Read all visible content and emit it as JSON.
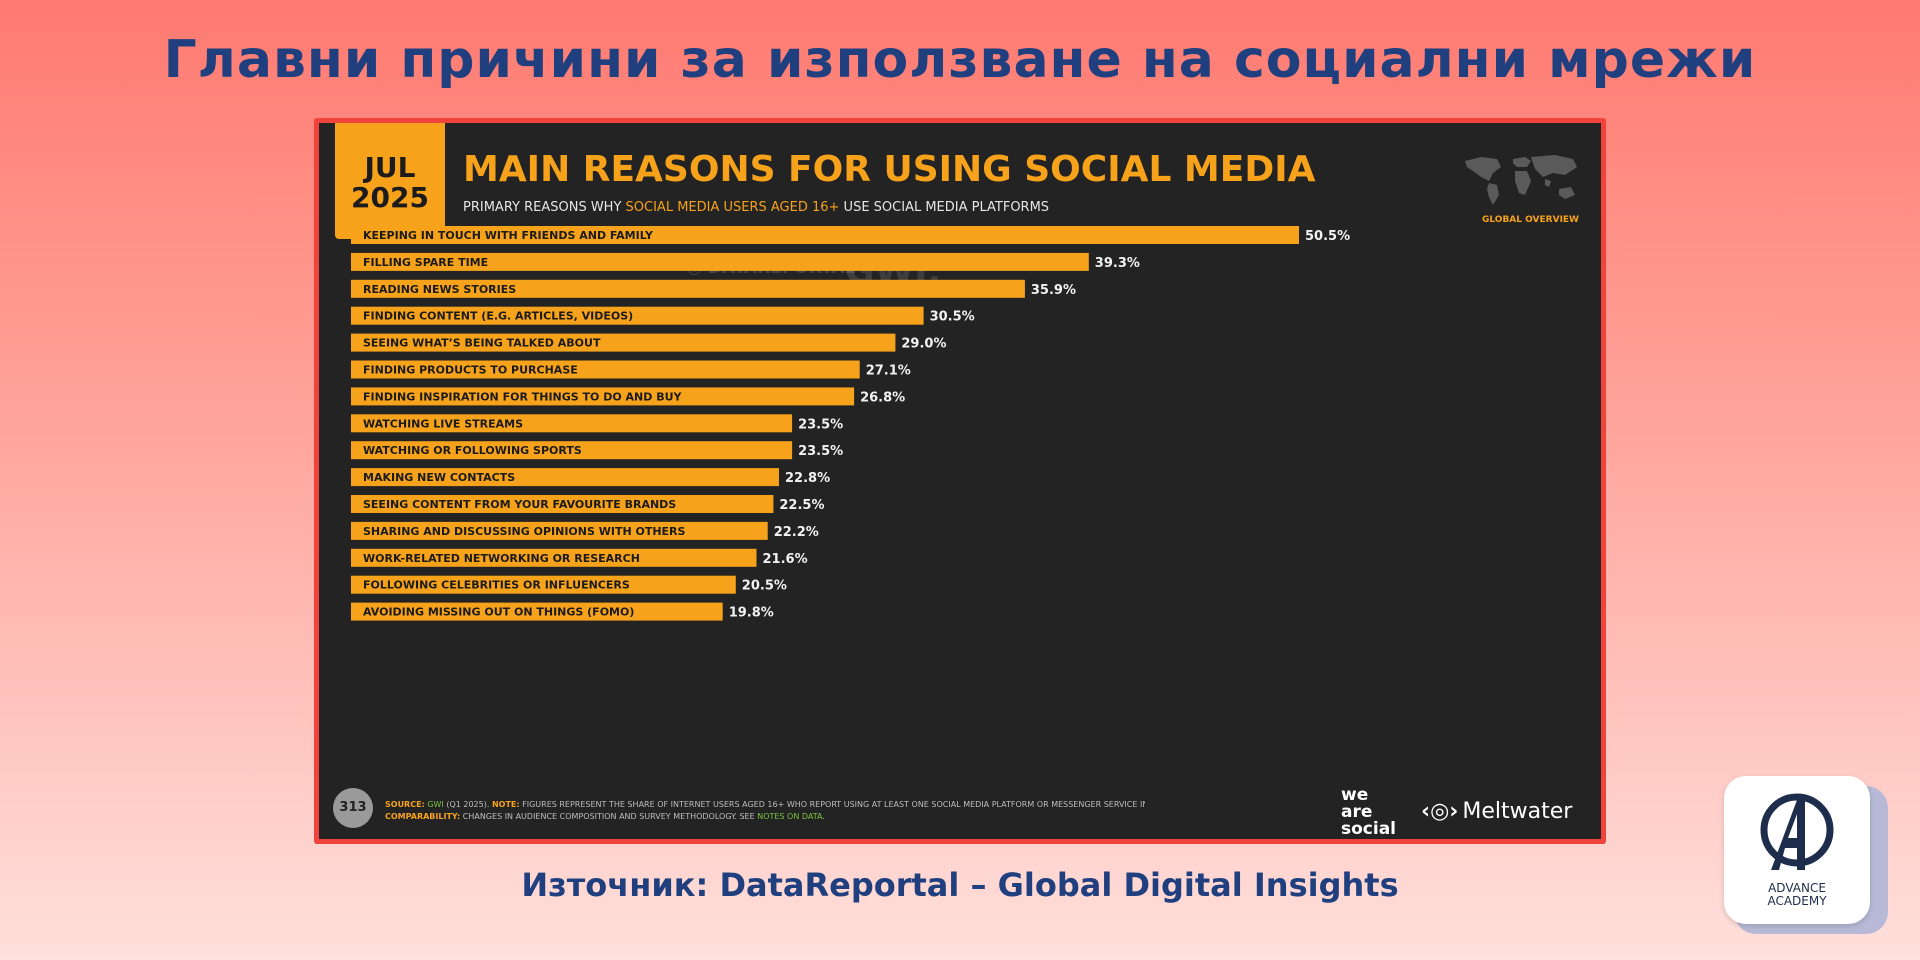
{
  "page": {
    "title": "Главни причини за използване на социални мрежи",
    "source": "Източник: DataReportal – Global Digital Insights"
  },
  "slide": {
    "date_month": "JUL",
    "date_year": "2025",
    "title": "MAIN REASONS FOR USING SOCIAL MEDIA",
    "subtitle_pre": "PRIMARY REASONS WHY ",
    "subtitle_highlight": "SOCIAL MEDIA USERS AGED 16+",
    "subtitle_post": " USE SOCIAL MEDIA PLATFORMS",
    "global_overview": "GLOBAL OVERVIEW",
    "watermark_datareportal": "DATAREPORTAL",
    "watermark_gwi": "GWI.",
    "page_number": "313",
    "footer": {
      "source_label": "SOURCE:",
      "source_value": "GWI",
      "source_rest": " (Q1 2025). ",
      "note_label": "NOTE:",
      "note_text": " FIGURES REPRESENT THE SHARE OF INTERNET USERS AGED 16+ WHO REPORT USING AT LEAST ONE SOCIAL MEDIA PLATFORM OR MESSENGER SERVICE IN THE PAST MONTH.",
      "comparability_label": "COMPARABILITY:",
      "comparability_text": " CHANGES IN AUDIENCE COMPOSITION AND SURVEY METHODOLOGY. SEE ",
      "notes_link": "NOTES ON DATA",
      "comparability_end": "."
    },
    "brand_was_1": "we",
    "brand_was_2": "are",
    "brand_was_3": "social",
    "brand_mw": "Meltwater",
    "brand_mw_icon": "meltwater-icon"
  },
  "logo": {
    "line1": "ADVANCE",
    "line2": "ACADEMY"
  },
  "colors": {
    "bar": "#f7a21b",
    "slide_bg": "#232323",
    "title_blue": "#1f3f7f"
  },
  "chart_data": {
    "type": "bar",
    "orientation": "horizontal",
    "title": "MAIN REASONS FOR USING SOCIAL MEDIA",
    "xlabel": "",
    "ylabel": "",
    "xlim": [
      0,
      50.5
    ],
    "value_suffix": "%",
    "categories": [
      "KEEPING IN TOUCH WITH FRIENDS AND FAMILY",
      "FILLING SPARE TIME",
      "READING NEWS STORIES",
      "FINDING CONTENT (E.G. ARTICLES, VIDEOS)",
      "SEEING WHAT’S BEING TALKED ABOUT",
      "FINDING PRODUCTS TO PURCHASE",
      "FINDING INSPIRATION FOR THINGS TO DO AND BUY",
      "WATCHING LIVE STREAMS",
      "WATCHING OR FOLLOWING SPORTS",
      "MAKING NEW CONTACTS",
      "SEEING CONTENT FROM YOUR FAVOURITE BRANDS",
      "SHARING AND DISCUSSING OPINIONS WITH OTHERS",
      "WORK-RELATED NETWORKING OR RESEARCH",
      "FOLLOWING CELEBRITIES OR INFLUENCERS",
      "AVOIDING MISSING OUT ON THINGS (FOMO)"
    ],
    "values": [
      50.5,
      39.3,
      35.9,
      30.5,
      29.0,
      27.1,
      26.8,
      23.5,
      23.5,
      22.8,
      22.5,
      22.2,
      21.6,
      20.5,
      19.8
    ],
    "labels": [
      "50.5%",
      "39.3%",
      "35.9%",
      "30.5%",
      "29.0%",
      "27.1%",
      "26.8%",
      "23.5%",
      "23.5%",
      "22.8%",
      "22.5%",
      "22.2%",
      "21.6%",
      "20.5%",
      "19.8%"
    ],
    "grid": false,
    "legend": "none"
  }
}
